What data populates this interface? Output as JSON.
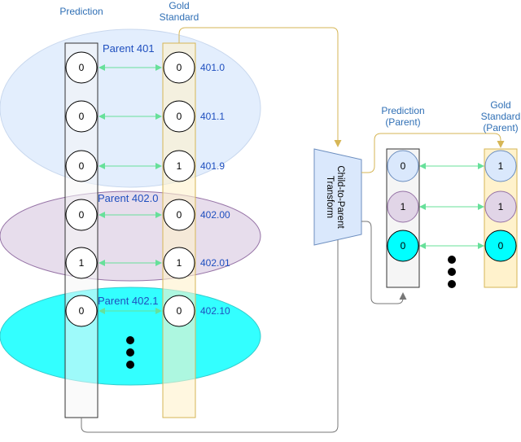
{
  "headers": {
    "prediction": "Prediction",
    "gold": [
      "Gold",
      "Standard"
    ],
    "prediction_parent": [
      "Prediction",
      "(Parent)"
    ],
    "gold_parent": [
      "Gold",
      "Standard",
      "(Parent)"
    ]
  },
  "groups": {
    "g401": "Parent 401",
    "g4020": "Parent 402.0",
    "g4021": "Parent 402.1"
  },
  "colors": {
    "group401": "#dae8fc",
    "group4020": "#e1d5e7",
    "group4021": "#00ffff",
    "gold_column": "#fff2cc",
    "pred_column": "#f5f5f5",
    "green_arrow": "#67e09a",
    "orange_line": "#d6b656",
    "label_blue": "#1f4fbf"
  },
  "rows": [
    {
      "pred": "0",
      "gold": "0",
      "code": "401.0"
    },
    {
      "pred": "0",
      "gold": "0",
      "code": "401.1"
    },
    {
      "pred": "0",
      "gold": "1",
      "code": "401.9"
    },
    {
      "pred": "0",
      "gold": "0",
      "code": "402.00"
    },
    {
      "pred": "1",
      "gold": "1",
      "code": "402.01"
    },
    {
      "pred": "0",
      "gold": "0",
      "code": "402.10"
    }
  ],
  "transform": [
    "Child-to-Parent",
    "Transform"
  ],
  "parent_rows": [
    {
      "pred": "0",
      "gold": "1"
    },
    {
      "pred": "1",
      "gold": "1"
    },
    {
      "pred": "0",
      "gold": "0"
    }
  ]
}
